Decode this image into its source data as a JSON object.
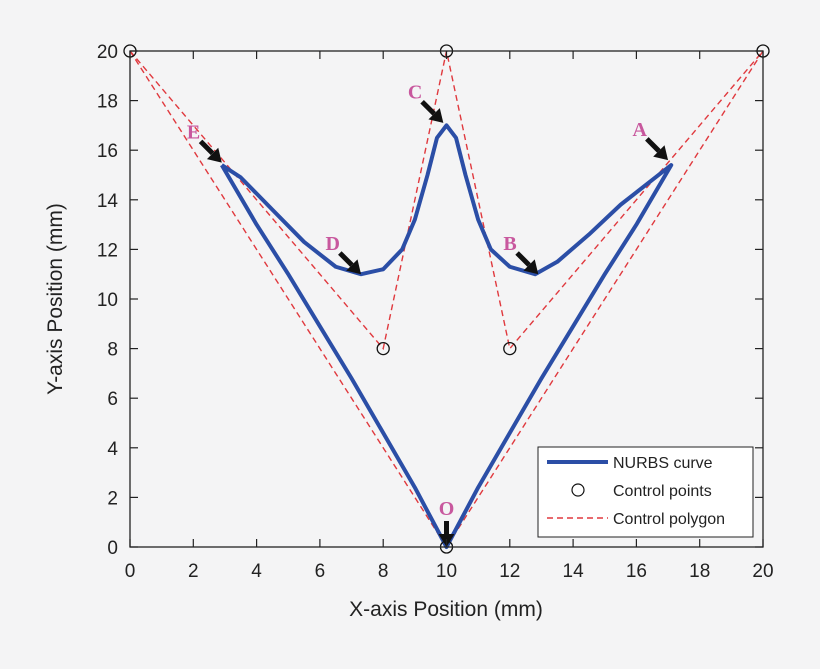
{
  "chart_data": {
    "type": "line",
    "xlabel": "X-axis Position (mm)",
    "ylabel": "Y-axis Position (mm)",
    "xlim": [
      0,
      20
    ],
    "ylim": [
      0,
      20
    ],
    "xticks": [
      0,
      2,
      4,
      6,
      8,
      10,
      12,
      14,
      16,
      18,
      20
    ],
    "yticks": [
      0,
      2,
      4,
      6,
      8,
      10,
      12,
      14,
      16,
      18,
      20
    ],
    "grid": false,
    "legend_position": "bottom-right",
    "colors": {
      "curve": "#2b4ea6",
      "polygon": "#e0393e",
      "points": "#111111",
      "annotation": "#c8589e"
    },
    "series": [
      {
        "name": "NURBS curve",
        "style": "solid",
        "x": [
          2.9,
          4.0,
          5.0,
          6.0,
          7.0,
          8.0,
          9.0,
          10.0,
          11.0,
          12.0,
          13.0,
          14.0,
          15.0,
          16.0,
          17.1,
          16.5,
          15.5,
          14.5,
          13.5,
          12.8,
          12.0,
          11.4,
          11.0,
          10.6,
          10.3,
          10.0,
          9.7,
          9.4,
          9.0,
          8.6,
          8.0,
          7.3,
          6.5,
          5.5,
          4.5,
          3.5,
          2.9
        ],
        "y": [
          15.4,
          13.0,
          11.0,
          8.9,
          6.8,
          4.6,
          2.4,
          0.0,
          2.4,
          4.6,
          6.8,
          8.9,
          11.0,
          13.0,
          15.4,
          14.8,
          13.8,
          12.6,
          11.5,
          11.0,
          11.3,
          12.0,
          13.2,
          15.0,
          16.5,
          17.0,
          16.5,
          15.0,
          13.2,
          12.0,
          11.2,
          11.0,
          11.3,
          12.3,
          13.6,
          14.9,
          15.4
        ]
      },
      {
        "name": "Control points",
        "style": "marker",
        "x": [
          0,
          10,
          20,
          8,
          12,
          10
        ],
        "y": [
          20,
          20,
          20,
          8,
          8,
          0
        ]
      },
      {
        "name": "Control polygon",
        "style": "dashed",
        "segments": [
          {
            "x": [
              0,
              8,
              10,
              12,
              20
            ],
            "y": [
              20,
              8,
              20,
              8,
              20
            ]
          },
          {
            "x": [
              0,
              10,
              20
            ],
            "y": [
              20,
              0,
              20
            ]
          }
        ]
      }
    ],
    "annotations": [
      {
        "label": "A",
        "x": 17.0,
        "y": 15.6
      },
      {
        "label": "B",
        "x": 12.9,
        "y": 11.0
      },
      {
        "label": "C",
        "x": 9.9,
        "y": 17.1
      },
      {
        "label": "D",
        "x": 7.3,
        "y": 11.0
      },
      {
        "label": "E",
        "x": 2.9,
        "y": 15.5
      },
      {
        "label": "O",
        "x": 10.0,
        "y": 0.0
      }
    ]
  }
}
